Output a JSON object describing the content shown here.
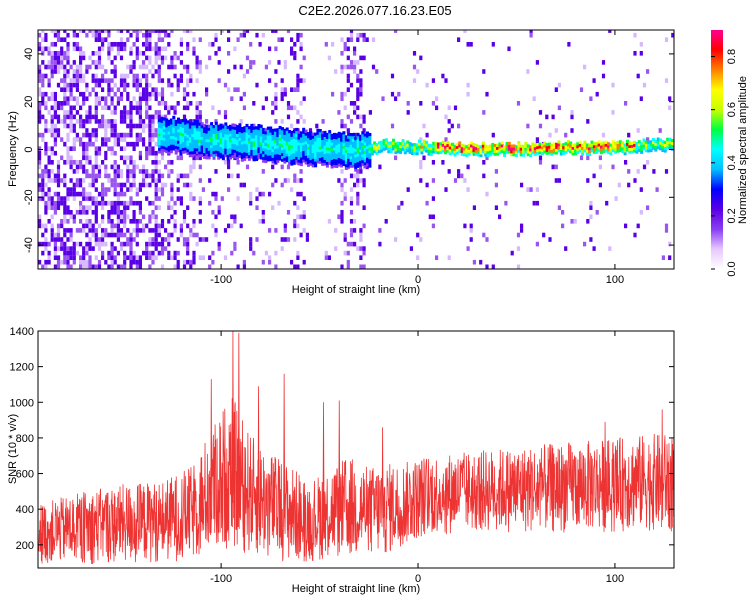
{
  "title": "C2E2.2026.077.16.23.E05",
  "chart_data": [
    {
      "type": "heatmap",
      "xlabel": "Height of straight line (km)",
      "ylabel": "Frequency (Hz)",
      "xlim": [
        -193,
        130
      ],
      "ylim": [
        -50,
        50
      ],
      "xticks": [
        -100,
        0,
        100
      ],
      "yticks": [
        -40,
        -20,
        0,
        20,
        40
      ],
      "colorbar": {
        "label": "Normalized spectral amplitude",
        "range": [
          0,
          0.9
        ],
        "ticks": [
          0.0,
          0.2,
          0.4,
          0.6,
          0.8
        ],
        "colors": [
          "#ffffff",
          "#e6c8ff",
          "#8a3df2",
          "#5a00e6",
          "#0000ff",
          "#00bfff",
          "#00ffff",
          "#00ff40",
          "#c8ff00",
          "#ffff00",
          "#ff8000",
          "#ff0000",
          "#ff0090"
        ]
      },
      "ridge": {
        "x": [
          -125,
          -110,
          -95,
          -80,
          -60,
          -45,
          -32,
          -25,
          -15,
          -5,
          10,
          30,
          55,
          75,
          95,
          110,
          125
        ],
        "y": [
          6,
          4,
          3,
          2.5,
          1,
          0,
          -1.5,
          0.5,
          1.5,
          1,
          0.5,
          0,
          0,
          0.5,
          0.5,
          1,
          2
        ]
      }
    },
    {
      "type": "line",
      "xlabel": "Height of straight line (km)",
      "ylabel": "SNR (10 * v/v)",
      "xlim": [
        -193,
        130
      ],
      "ylim": [
        70,
        1400
      ],
      "xticks": [
        -100,
        0,
        100
      ],
      "yticks": [
        200,
        400,
        600,
        800,
        1000,
        1200,
        1400
      ],
      "series_color": "#ee3333",
      "envelope": {
        "x": [
          -193,
          -170,
          -150,
          -130,
          -115,
          -105,
          -95,
          -85,
          -75,
          -65,
          -55,
          -45,
          -35,
          -25,
          -15,
          -5,
          5,
          20,
          40,
          60,
          80,
          100,
          115,
          130
        ],
        "low": [
          90,
          90,
          90,
          100,
          110,
          150,
          180,
          140,
          120,
          100,
          100,
          120,
          110,
          120,
          140,
          200,
          250,
          260,
          270,
          260,
          270,
          270,
          280,
          270
        ],
        "high": [
          430,
          500,
          540,
          560,
          640,
          860,
          1050,
          820,
          720,
          650,
          560,
          640,
          700,
          640,
          660,
          670,
          710,
          720,
          740,
          760,
          780,
          800,
          820,
          830
        ]
      },
      "peaks": [
        {
          "x": -94,
          "y": 1400
        },
        {
          "x": -91,
          "y": 1390
        },
        {
          "x": -105,
          "y": 1130
        },
        {
          "x": -81,
          "y": 1090
        },
        {
          "x": -68,
          "y": 1160
        },
        {
          "x": -48,
          "y": 1000
        },
        {
          "x": -40,
          "y": 1010
        },
        {
          "x": -18,
          "y": 860
        },
        {
          "x": 95,
          "y": 890
        },
        {
          "x": 124,
          "y": 960
        }
      ]
    }
  ]
}
